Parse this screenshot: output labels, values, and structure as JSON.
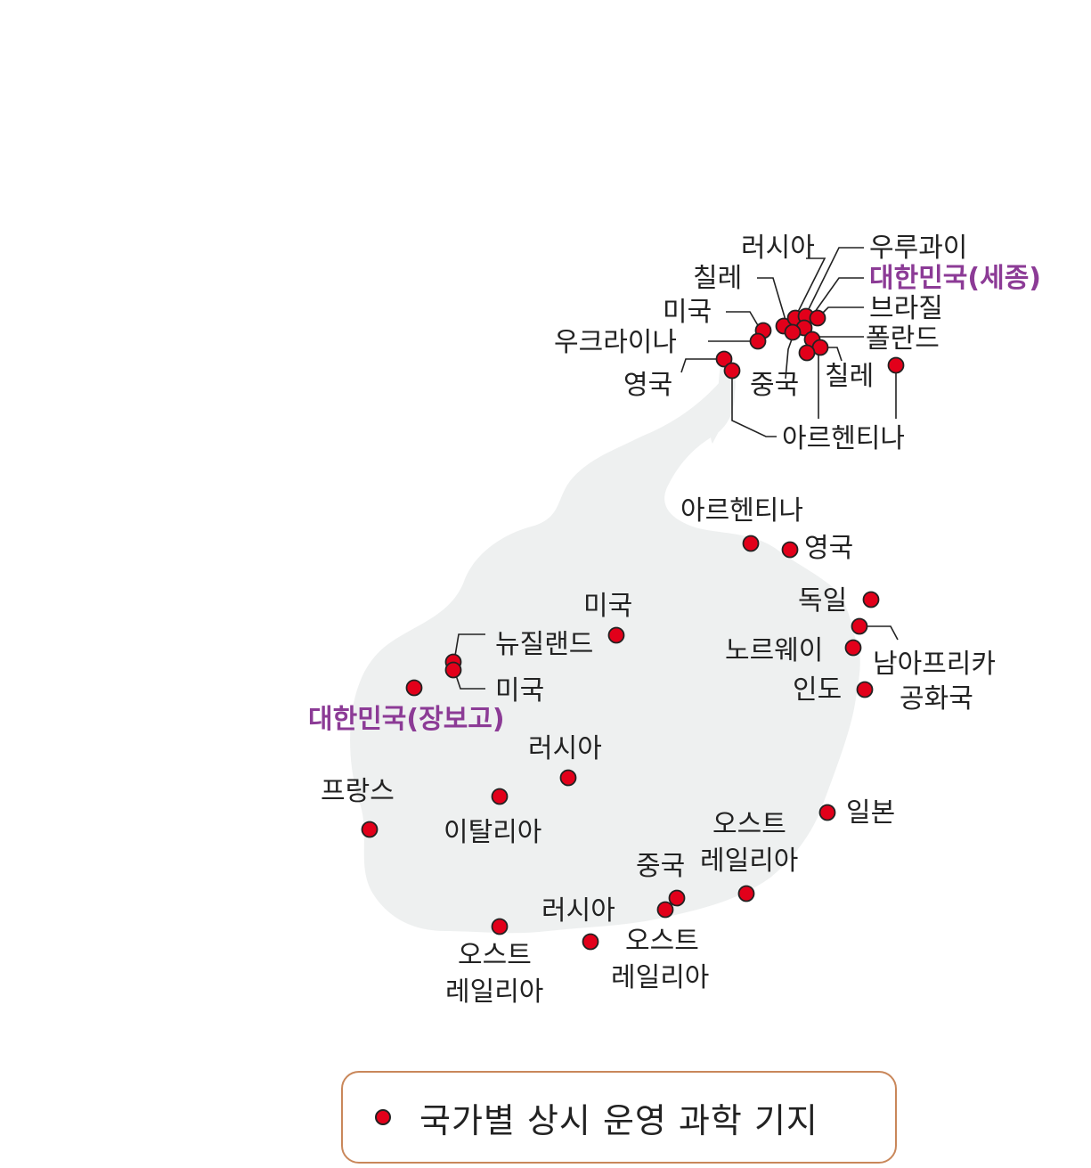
{
  "colors": {
    "station": "#e2001a",
    "highlight": "#8c3b96",
    "land": "#eef0f0",
    "legend_border": "#c9875a"
  },
  "stations": {
    "king_george_island": [
      "러시아",
      "우루과이",
      "칠레",
      "대한민국(세종)",
      "미국",
      "브라질",
      "폴란드",
      "중국",
      "칠레",
      "아르헨티나"
    ],
    "peninsula": [
      "우크라이나",
      "영국",
      "아르헨티나"
    ],
    "mainland": [
      "아르헨티나",
      "영국",
      "독일",
      "남아프리카 공화국",
      "노르웨이",
      "인도",
      "일본",
      "오스트레일리아",
      "중국",
      "오스트레일리아",
      "러시아",
      "오스트레일리아",
      "이탈리아",
      "러시아",
      "프랑스",
      "미국",
      "뉴질랜드",
      "미국",
      "대한민국(장보고)"
    ]
  },
  "labels": {
    "kg_russia": "러시아",
    "kg_uruguay": "우루과이",
    "kg_korea": "대한민국(세종)",
    "kg_chile1": "칠레",
    "kg_usa": "미국",
    "kg_brazil": "브라질",
    "kg_ukraine": "우크라이나",
    "kg_poland": "폴란드",
    "kg_uk": "영국",
    "kg_china": "중국",
    "kg_chile2": "칠레",
    "kg_argentina": "아르헨티나",
    "m_argentina": "아르헨티나",
    "m_uk": "영국",
    "m_germany": "독일",
    "m_norway": "노르웨이",
    "m_sa_line1": "남아프리카",
    "m_sa_line2": "공화국",
    "m_india": "인도",
    "m_usa1": "미국",
    "m_nz": "뉴질랜드",
    "m_usa2": "미국",
    "m_korea": "대한민국(장보고)",
    "m_russia1": "러시아",
    "m_france": "프랑스",
    "m_italy": "이탈리아",
    "m_japan": "일본",
    "m_aus1_line1": "오스트",
    "m_aus1_line2": "레일리아",
    "m_china": "중국",
    "m_russia2": "러시아",
    "m_aus2_line1": "오스트",
    "m_aus2_line2": "레일리아",
    "m_aus3_line1": "오스트",
    "m_aus3_line2": "레일리아"
  },
  "legend": {
    "label": "국가별 상시 운영 과학 기지"
  }
}
